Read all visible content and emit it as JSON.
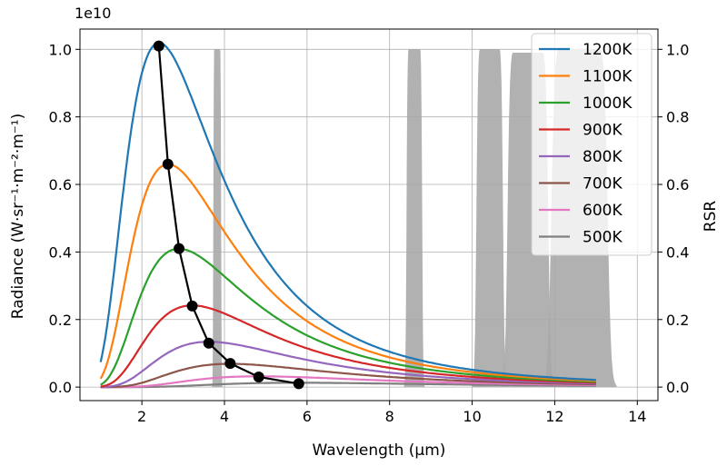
{
  "chart_data": {
    "type": "line",
    "title": "",
    "xlabel": "Wavelength (μm)",
    "ylabel": "Radiance (W·sr⁻¹·m⁻²·m⁻¹)",
    "y2label": "RSR",
    "y_offset_text": "1e10",
    "xlim": [
      0.5,
      14.5
    ],
    "ylim": [
      -0.04,
      1.06
    ],
    "y2lim": [
      -0.04,
      1.06
    ],
    "x_ticks": [
      2,
      4,
      6,
      8,
      10,
      12,
      14
    ],
    "y_ticks": [
      0.0,
      0.2,
      0.4,
      0.6,
      0.8,
      1.0
    ],
    "y2_ticks": [
      0.0,
      0.2,
      0.4,
      0.6,
      0.8,
      1.0
    ],
    "x_tick_labels": [
      "2",
      "4",
      "6",
      "8",
      "10",
      "12",
      "14"
    ],
    "y_tick_labels": [
      "0.0",
      "0.2",
      "0.4",
      "0.6",
      "0.8",
      "1.0"
    ],
    "y2_tick_labels": [
      "0.0",
      "0.2",
      "0.4",
      "0.6",
      "0.8",
      "1.0"
    ],
    "grid": true,
    "legend_position": "top-right",
    "curve_x_range": [
      1.0,
      13.0
    ],
    "series": [
      {
        "name": "1200K",
        "temperature_K": 1200,
        "color": "#1f77b4"
      },
      {
        "name": "1100K",
        "temperature_K": 1100,
        "color": "#ff7f0e"
      },
      {
        "name": "1000K",
        "temperature_K": 1000,
        "color": "#2ca02c"
      },
      {
        "name": "900K",
        "temperature_K": 900,
        "color": "#d62728"
      },
      {
        "name": "800K",
        "temperature_K": 800,
        "color": "#9467bd"
      },
      {
        "name": "700K",
        "temperature_K": 700,
        "color": "#8c564b"
      },
      {
        "name": "600K",
        "temperature_K": 600,
        "color": "#e377c2"
      },
      {
        "name": "500K",
        "temperature_K": 500,
        "color": "#7f7f7f"
      }
    ],
    "peak_line": {
      "color": "#000000",
      "points": [
        {
          "x": 2.41,
          "y": 1.01
        },
        {
          "x": 2.63,
          "y": 0.66
        },
        {
          "x": 2.9,
          "y": 0.41
        },
        {
          "x": 3.22,
          "y": 0.24
        },
        {
          "x": 3.62,
          "y": 0.13
        },
        {
          "x": 4.14,
          "y": 0.07
        },
        {
          "x": 4.83,
          "y": 0.03
        },
        {
          "x": 5.8,
          "y": 0.01
        }
      ]
    },
    "rsr_bands": {
      "color": "#a8a8a8",
      "bands": [
        {
          "start": 3.7,
          "end": 3.95,
          "peak": 1.0
        },
        {
          "start": 8.35,
          "end": 8.85,
          "peak": 1.0
        },
        {
          "start": 10.0,
          "end": 10.85,
          "peak": 1.0
        },
        {
          "start": 10.7,
          "end": 12.0,
          "peak": 0.99
        },
        {
          "start": 11.7,
          "end": 13.5,
          "peak": 1.0
        }
      ]
    }
  }
}
